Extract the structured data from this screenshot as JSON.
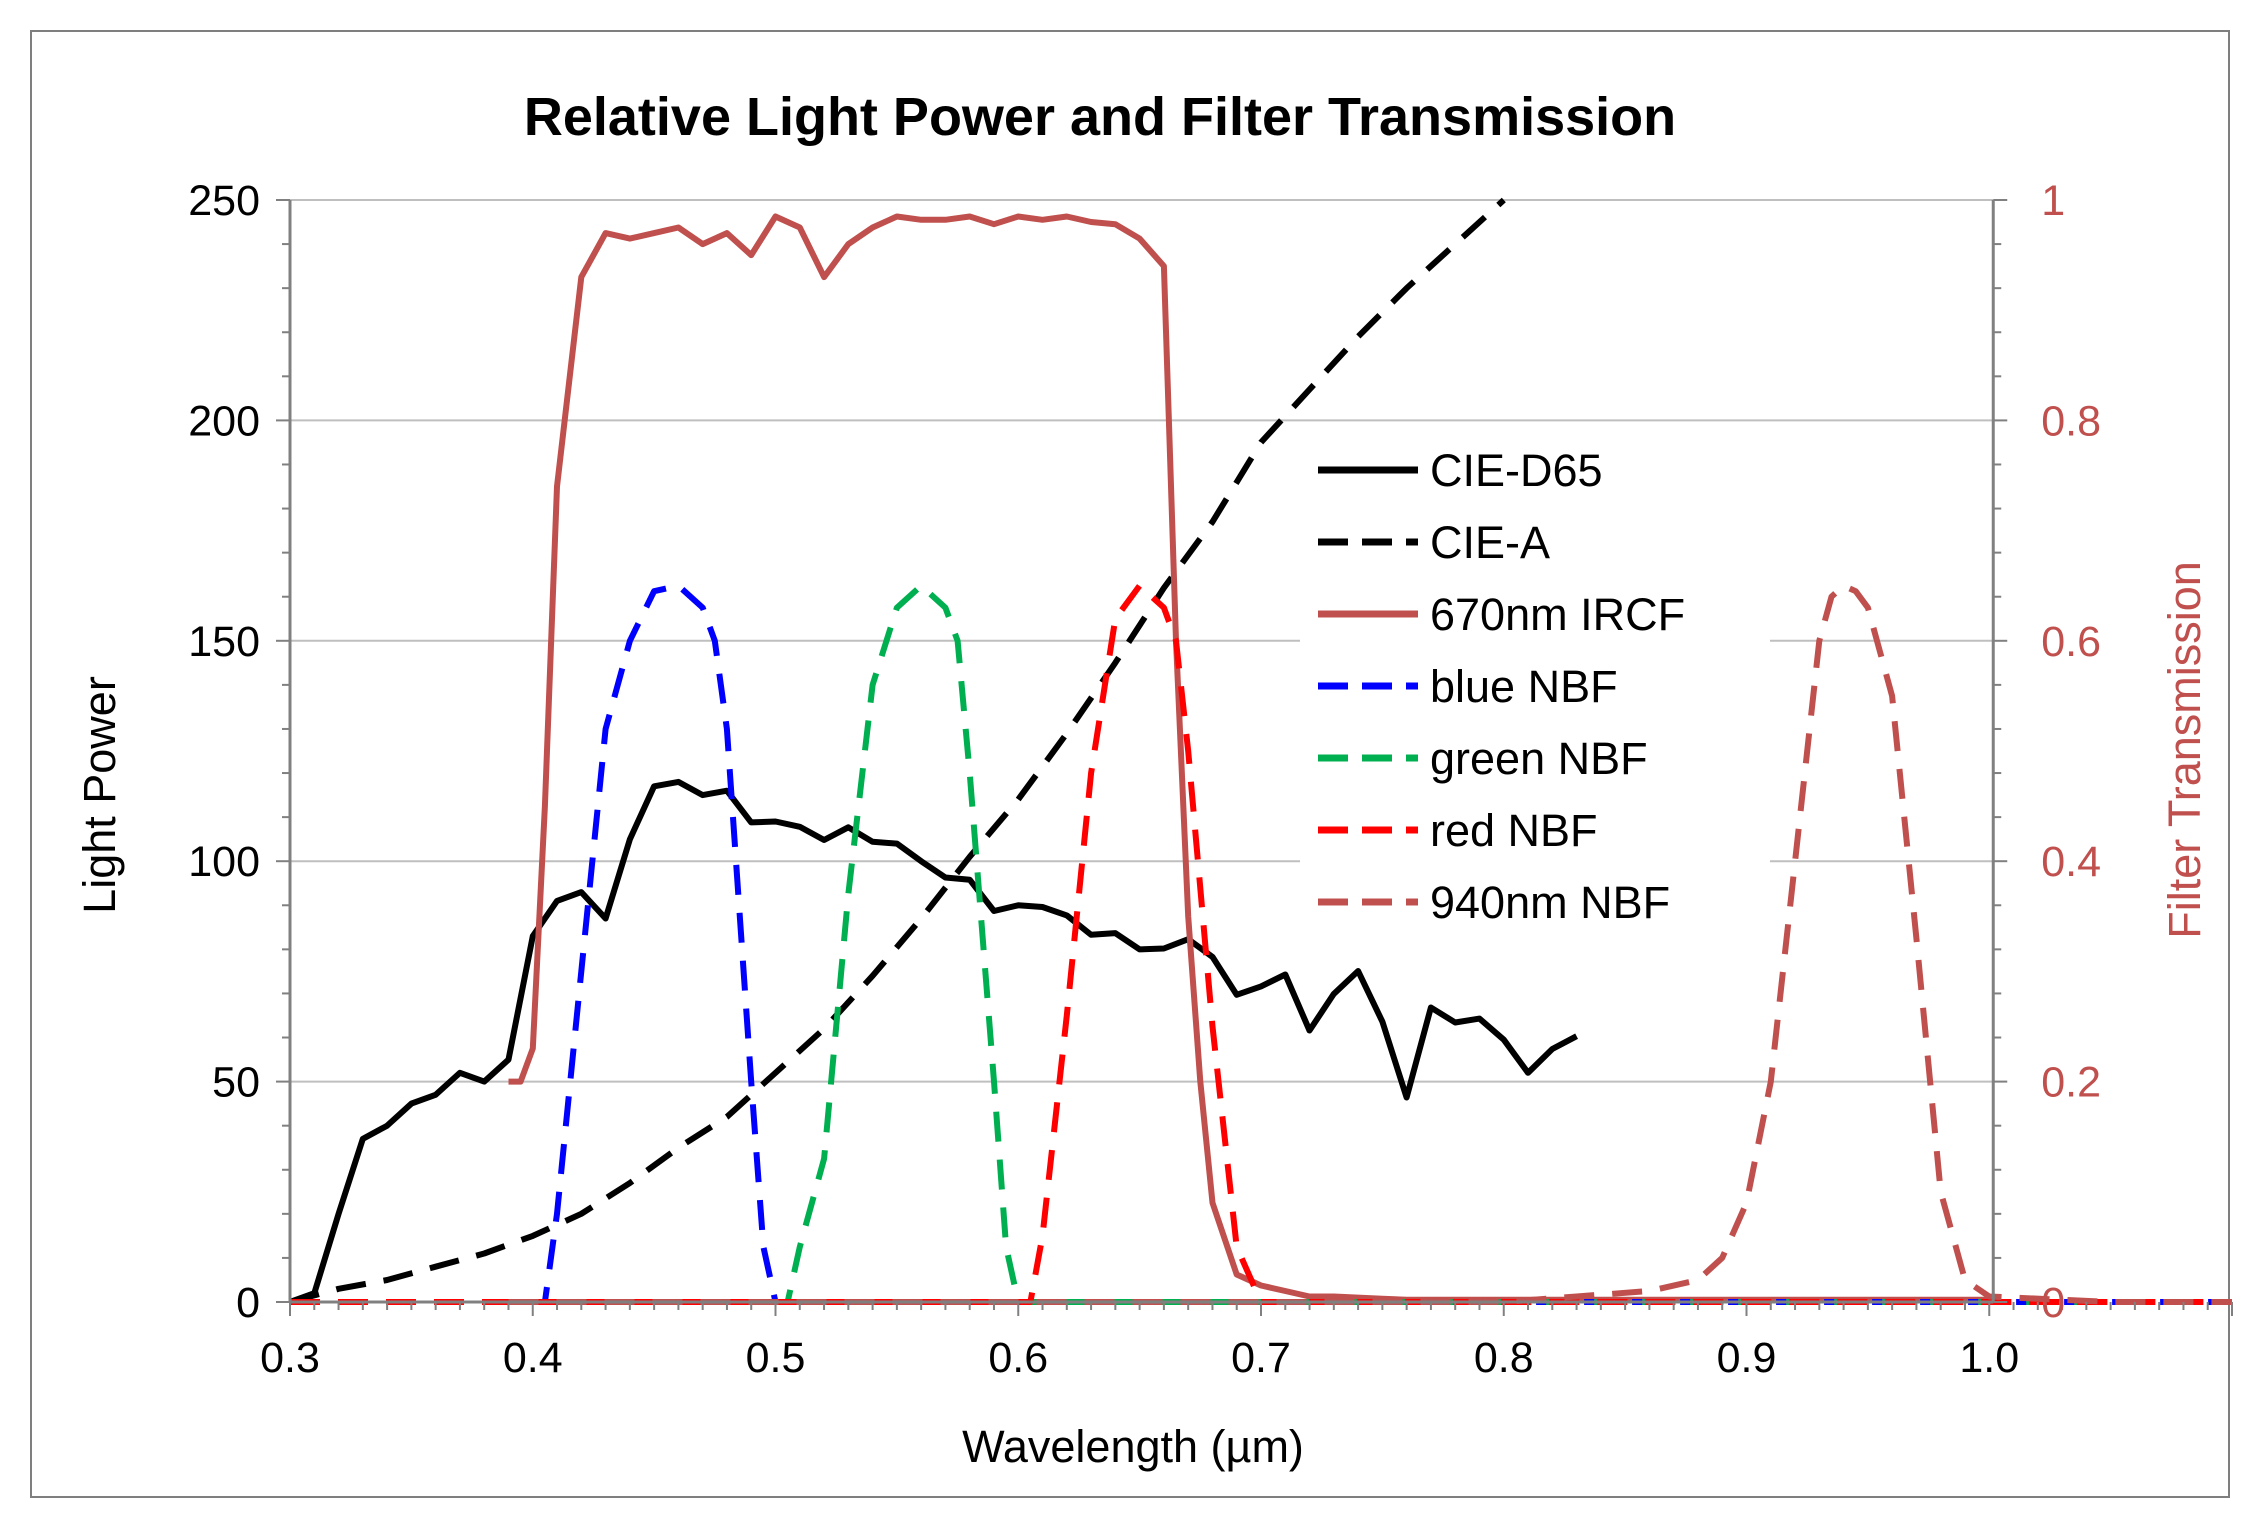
{
  "chart_data": {
    "type": "line",
    "title": "Relative Light Power and Filter Transmission",
    "xlabel": "Wavelength (µm)",
    "ylabel": "Light Power",
    "y2label": "Filter Transmission",
    "xlim": [
      0.3,
      1.1
    ],
    "ylim": [
      0,
      250
    ],
    "y2lim": [
      0,
      1
    ],
    "x_ticks": [
      "0.3",
      "0.4",
      "0.5",
      "0.6",
      "0.7",
      "0.8",
      "0.9",
      "1.0"
    ],
    "x_tick_values": [
      0.3,
      0.4,
      0.5,
      0.6,
      0.7,
      0.8,
      0.9,
      1.0
    ],
    "y_ticks": [
      "0",
      "50",
      "100",
      "150",
      "200",
      "250"
    ],
    "y_tick_values": [
      0,
      50,
      100,
      150,
      200,
      250
    ],
    "y2_ticks": [
      "0",
      "0.2",
      "0.4",
      "0.6",
      "0.8",
      "1"
    ],
    "y2_tick_values": [
      0,
      0.2,
      0.4,
      0.6,
      0.8,
      1.0
    ],
    "legend_position": "right-center",
    "colors": {
      "axis_right": "#c0504d",
      "grid": "#bfbfbf"
    },
    "series": [
      {
        "name": "CIE-D65",
        "axis": "left",
        "color": "#000000",
        "dash": "solid",
        "x": [
          0.3,
          0.31,
          0.32,
          0.33,
          0.34,
          0.35,
          0.36,
          0.37,
          0.38,
          0.39,
          0.4,
          0.41,
          0.42,
          0.43,
          0.44,
          0.45,
          0.46,
          0.47,
          0.48,
          0.49,
          0.5,
          0.51,
          0.52,
          0.53,
          0.54,
          0.55,
          0.56,
          0.57,
          0.58,
          0.59,
          0.6,
          0.61,
          0.62,
          0.63,
          0.64,
          0.65,
          0.66,
          0.67,
          0.68,
          0.69,
          0.7,
          0.71,
          0.72,
          0.73,
          0.74,
          0.75,
          0.76,
          0.77,
          0.78,
          0.79,
          0.8,
          0.81,
          0.82,
          0.83
        ],
        "y": [
          0,
          2,
          20,
          37,
          40,
          45,
          47,
          52,
          50,
          55,
          83,
          91,
          93,
          87,
          105,
          117,
          118,
          115,
          116,
          108.8,
          109,
          107.8,
          104.8,
          107.7,
          104.4,
          104,
          100,
          96.3,
          95.8,
          88.7,
          90,
          89.6,
          87.7,
          83.3,
          83.7,
          80,
          80.2,
          82.3,
          78.3,
          69.7,
          71.6,
          74.3,
          61.6,
          69.9,
          75.1,
          63.6,
          46.4,
          66.8,
          63.4,
          64.3,
          59.5,
          52,
          57.4,
          60.3
        ]
      },
      {
        "name": "CIE-A",
        "axis": "left",
        "color": "#000000",
        "dash": "dashed",
        "x": [
          0.3,
          0.32,
          0.34,
          0.36,
          0.38,
          0.4,
          0.42,
          0.44,
          0.46,
          0.48,
          0.5,
          0.52,
          0.54,
          0.56,
          0.58,
          0.6,
          0.62,
          0.64,
          0.66,
          0.68,
          0.7,
          0.72,
          0.74,
          0.76,
          0.78,
          0.8
        ],
        "y": [
          0,
          3,
          5,
          8,
          11,
          15,
          20,
          27,
          35,
          42,
          52,
          62,
          74,
          87,
          101,
          114,
          129,
          145,
          162,
          177,
          195,
          207,
          219,
          230,
          240,
          250
        ]
      },
      {
        "name": "670nm IRCF",
        "axis": "right",
        "color": "#c0504d",
        "dash": "solid",
        "x": [
          0.39,
          0.395,
          0.4,
          0.405,
          0.41,
          0.42,
          0.43,
          0.44,
          0.45,
          0.46,
          0.47,
          0.48,
          0.49,
          0.5,
          0.51,
          0.52,
          0.53,
          0.54,
          0.55,
          0.56,
          0.57,
          0.58,
          0.59,
          0.6,
          0.61,
          0.62,
          0.63,
          0.64,
          0.65,
          0.66,
          0.665,
          0.67,
          0.675,
          0.68,
          0.69,
          0.7,
          0.71,
          0.72,
          0.73,
          0.74,
          0.75,
          0.76,
          0.8,
          0.85,
          0.9,
          0.95,
          1.0
        ],
        "y": [
          0.2,
          0.2,
          0.23,
          0.45,
          0.74,
          0.93,
          0.97,
          0.965,
          0.97,
          0.975,
          0.96,
          0.97,
          0.95,
          0.985,
          0.975,
          0.93,
          0.96,
          0.975,
          0.985,
          0.982,
          0.982,
          0.985,
          0.978,
          0.985,
          0.982,
          0.985,
          0.98,
          0.978,
          0.965,
          0.94,
          0.6,
          0.35,
          0.2,
          0.09,
          0.025,
          0.015,
          0.01,
          0.005,
          0.005,
          0.004,
          0.003,
          0.002,
          0.002,
          0.002,
          0.002,
          0.002,
          0.002
        ]
      },
      {
        "name": "blue NBF",
        "axis": "right",
        "color": "#0000ff",
        "dash": "dashed",
        "x": [
          0.3,
          0.405,
          0.41,
          0.42,
          0.43,
          0.44,
          0.45,
          0.46,
          0.47,
          0.475,
          0.48,
          0.49,
          0.495,
          0.5,
          1.1
        ],
        "y": [
          0,
          0,
          0.08,
          0.3,
          0.52,
          0.6,
          0.645,
          0.65,
          0.63,
          0.6,
          0.52,
          0.2,
          0.05,
          0,
          0
        ]
      },
      {
        "name": "green NBF",
        "axis": "right",
        "color": "#00b050",
        "dash": "dashed",
        "x": [
          0.3,
          0.505,
          0.51,
          0.52,
          0.53,
          0.54,
          0.55,
          0.56,
          0.57,
          0.575,
          0.58,
          0.59,
          0.595,
          0.6,
          1.1
        ],
        "y": [
          0,
          0,
          0.05,
          0.13,
          0.37,
          0.56,
          0.63,
          0.65,
          0.63,
          0.6,
          0.48,
          0.2,
          0.05,
          0,
          0
        ]
      },
      {
        "name": "red NBF",
        "axis": "right",
        "color": "#ff0000",
        "dash": "dashed",
        "x": [
          0.3,
          0.605,
          0.61,
          0.62,
          0.63,
          0.64,
          0.65,
          0.66,
          0.665,
          0.67,
          0.68,
          0.69,
          0.7,
          1.1
        ],
        "y": [
          0,
          0,
          0.06,
          0.26,
          0.48,
          0.62,
          0.65,
          0.63,
          0.6,
          0.5,
          0.25,
          0.05,
          0,
          0
        ]
      },
      {
        "name": "940nm NBF",
        "axis": "right",
        "color": "#c0504d",
        "dash": "dashed",
        "x": [
          0.39,
          0.8,
          0.83,
          0.86,
          0.88,
          0.89,
          0.9,
          0.91,
          0.92,
          0.93,
          0.935,
          0.94,
          0.945,
          0.95,
          0.96,
          0.97,
          0.98,
          0.99,
          1.0,
          1.05,
          1.1
        ],
        "y": [
          0,
          0,
          0.005,
          0.01,
          0.02,
          0.04,
          0.09,
          0.2,
          0.4,
          0.6,
          0.64,
          0.65,
          0.645,
          0.63,
          0.55,
          0.33,
          0.1,
          0.02,
          0.005,
          0,
          0
        ]
      }
    ]
  }
}
